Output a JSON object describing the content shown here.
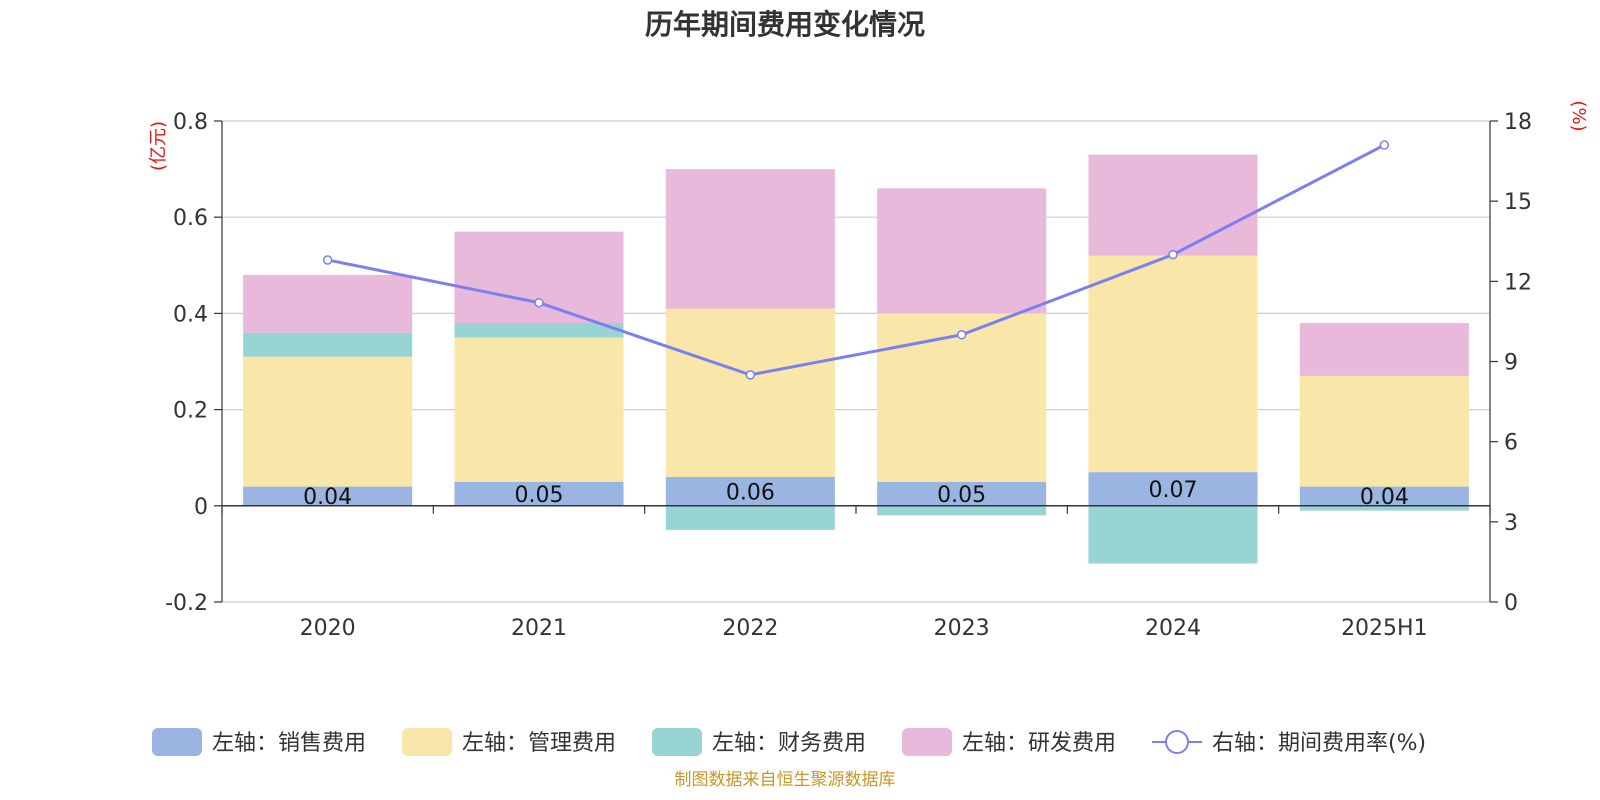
{
  "chart_data": {
    "type": "bar",
    "title": "历年期间费用变化情况",
    "categories": [
      "2020",
      "2021",
      "2022",
      "2023",
      "2024",
      "2025H1"
    ],
    "left_axis": {
      "unit": "(亿元)",
      "ylim": [
        -0.2,
        0.8
      ],
      "ticks": [
        -0.2,
        0,
        0.2,
        0.4,
        0.6,
        0.8
      ],
      "tick_labels": [
        "-0.2",
        "0",
        "0.2",
        "0.4",
        "0.6",
        "0.8"
      ]
    },
    "right_axis": {
      "unit": "(%)",
      "ylim": [
        0,
        18
      ],
      "ticks": [
        0,
        3,
        6,
        9,
        12,
        15,
        18
      ],
      "tick_labels": [
        "0",
        "3",
        "6",
        "9",
        "12",
        "15",
        "18"
      ]
    },
    "series": [
      {
        "name": "左轴：销售费用",
        "type": "bar",
        "axis": "left",
        "color": "#9bb5e2",
        "values": [
          0.04,
          0.05,
          0.06,
          0.05,
          0.07,
          0.04
        ],
        "labels": [
          "0.04",
          "0.05",
          "0.06",
          "0.05",
          "0.07",
          "0.04"
        ]
      },
      {
        "name": "左轴：管理费用",
        "type": "bar",
        "axis": "left",
        "color": "#f8e7a8",
        "values": [
          0.27,
          0.3,
          0.35,
          0.35,
          0.45,
          0.23
        ]
      },
      {
        "name": "左轴：财务费用",
        "type": "bar",
        "axis": "left",
        "color": "#98d4d4",
        "values": [
          0.05,
          0.03,
          -0.05,
          -0.02,
          -0.12,
          -0.01
        ]
      },
      {
        "name": "左轴：研发费用",
        "type": "bar",
        "axis": "left",
        "color": "#e8b9da",
        "values": [
          0.12,
          0.19,
          0.29,
          0.26,
          0.21,
          0.11
        ]
      },
      {
        "name": "右轴：期间费用率(%)",
        "type": "line",
        "axis": "right",
        "color": "#7b7ff0",
        "values": [
          12.8,
          11.2,
          8.5,
          10.0,
          13.0,
          17.1
        ]
      }
    ],
    "grid": true,
    "legend_position": "bottom"
  },
  "source": "制图数据来自恒生聚源数据库"
}
